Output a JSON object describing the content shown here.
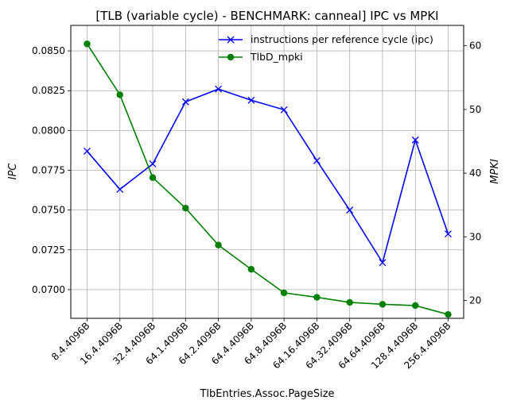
{
  "chart_data": {
    "type": "line",
    "title": "[TLB (variable cycle) - BENCHMARK: canneal]  IPC vs MPKI",
    "xlabel": "TlbEntries.Assoc.PageSize",
    "ylabel_left": "IPC",
    "ylabel_right": "MPKI",
    "categories": [
      "8.4.4096B",
      "16.4.4096B",
      "32.4.4096B",
      "64.1.4096B",
      "64.2.4096B",
      "64.4.4096B",
      "64.8.4096B",
      "64.16.4096B",
      "64.32.4096B",
      "64.64.4096B",
      "128.4.4096B",
      "256.4.4096B"
    ],
    "ylim_left": [
      0.0682,
      0.0866
    ],
    "ylim_right": [
      17.2,
      63.2
    ],
    "yticks_left": [
      "0.0700",
      "0.0725",
      "0.0750",
      "0.0775",
      "0.0800",
      "0.0825",
      "0.0850"
    ],
    "yticks_right": [
      "20",
      "30",
      "40",
      "50",
      "60"
    ],
    "grid": true,
    "legend_position": "top-right",
    "series": [
      {
        "name": "instructions per reference cycle (ipc)",
        "axis": "left",
        "color": "#0000ff",
        "marker": "x",
        "values": [
          0.0787,
          0.0763,
          0.0779,
          0.0818,
          0.0826,
          0.0819,
          0.0813,
          0.0781,
          0.075,
          0.0717,
          0.0794,
          0.0735
        ]
      },
      {
        "name": "TlbD_mpki",
        "axis": "right",
        "color": "#008000",
        "marker": "o",
        "values": [
          60.3,
          52.3,
          39.3,
          34.5,
          28.7,
          24.9,
          21.2,
          20.5,
          19.7,
          19.4,
          19.2,
          17.8
        ]
      }
    ]
  }
}
